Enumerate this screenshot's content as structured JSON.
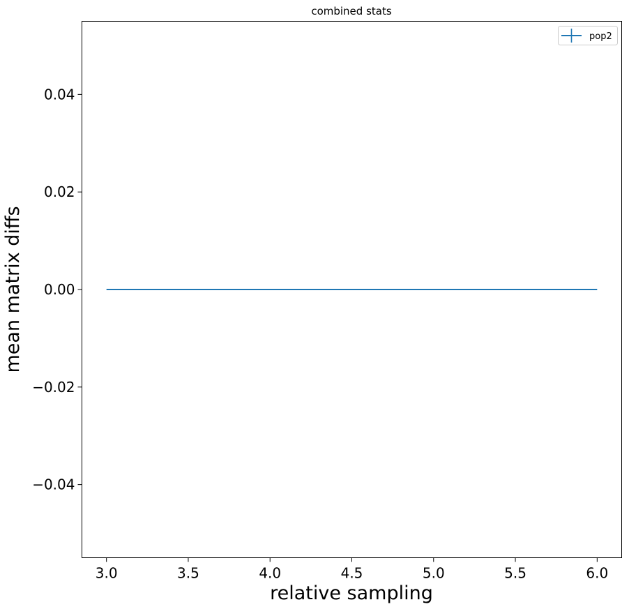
{
  "chart_data": {
    "type": "line",
    "title": "combined stats",
    "xlabel": "relative sampling",
    "ylabel": "mean matrix diffs",
    "xlim": [
      2.85,
      6.15
    ],
    "ylim": [
      -0.055,
      0.055
    ],
    "xticks": [
      3.0,
      3.5,
      4.0,
      4.5,
      5.0,
      5.5,
      6.0
    ],
    "xtick_labels": [
      "3.0",
      "3.5",
      "4.0",
      "4.5",
      "5.0",
      "5.5",
      "6.0"
    ],
    "yticks": [
      0.04,
      0.02,
      0.0,
      -0.02,
      -0.04
    ],
    "ytick_labels": [
      "0.04",
      "0.02",
      "0.00",
      "−0.02",
      "−0.04"
    ],
    "grid": false,
    "legend_position": "top-right",
    "series": [
      {
        "name": "pop2",
        "color": "#1f77b4",
        "x": [
          3,
          4,
          5,
          6
        ],
        "y": [
          0,
          0,
          0,
          0
        ],
        "error_bars": true
      }
    ]
  }
}
